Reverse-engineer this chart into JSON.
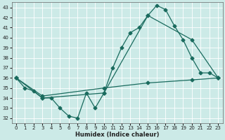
{
  "xlabel": "Humidex (Indice chaleur)",
  "bg_color": "#cceae7",
  "grid_color": "#aaaaaa",
  "line_color": "#1a6b5e",
  "xlim": [
    -0.5,
    23.5
  ],
  "ylim": [
    31.5,
    43.5
  ],
  "yticks": [
    32,
    33,
    34,
    35,
    36,
    37,
    38,
    39,
    40,
    41,
    42,
    43
  ],
  "xticks": [
    0,
    1,
    2,
    3,
    4,
    5,
    6,
    7,
    8,
    9,
    10,
    11,
    12,
    13,
    14,
    15,
    16,
    17,
    18,
    19,
    20,
    21,
    22,
    23
  ],
  "series1_x": [
    0,
    1,
    2,
    3,
    4,
    5,
    6,
    7,
    8,
    9,
    10,
    11,
    12,
    13,
    14,
    15,
    16,
    17,
    18,
    19,
    20,
    21,
    22,
    23
  ],
  "series1_y": [
    36,
    35,
    34.7,
    34,
    34,
    33,
    32.2,
    32,
    34.5,
    33,
    34.5,
    37,
    39,
    40.5,
    41,
    42.2,
    43.2,
    42.8,
    41.2,
    39.8,
    38,
    36.5,
    36.5,
    36
  ],
  "series2_x": [
    0,
    3,
    10,
    15,
    20,
    23
  ],
  "series2_y": [
    36,
    34,
    34.5,
    42.2,
    39.8,
    36
  ],
  "series3_x": [
    0,
    3,
    10,
    15,
    20,
    23
  ],
  "series3_y": [
    36,
    34.2,
    35.0,
    35.5,
    35.8,
    36.0
  ],
  "marker": "D",
  "markersize": 2.5,
  "linewidth": 0.9
}
